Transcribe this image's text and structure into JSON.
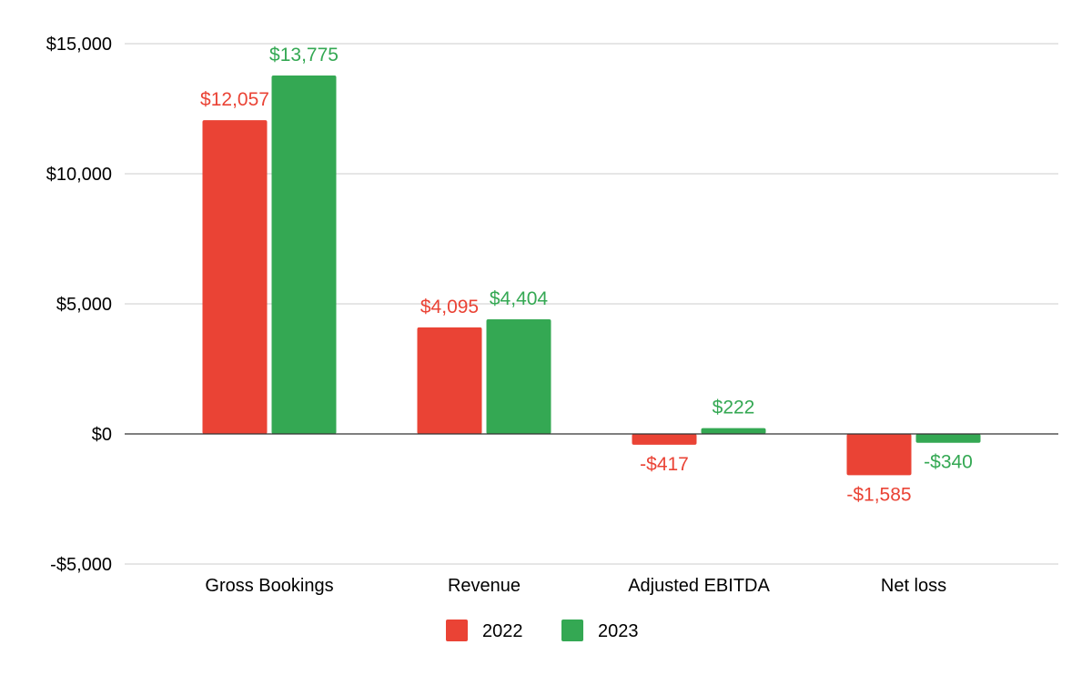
{
  "chart_data": {
    "type": "bar",
    "title": "",
    "xlabel": "",
    "ylabel": "",
    "categories": [
      "Gross Bookings",
      "Revenue",
      "Adjusted EBITDA",
      "Net loss"
    ],
    "series": [
      {
        "name": "2022",
        "color": "#ea4335",
        "values": [
          12057,
          4095,
          -417,
          -1585
        ],
        "labels": [
          "$12,057",
          "$4,095",
          "-$417",
          "-$1,585"
        ]
      },
      {
        "name": "2023",
        "color": "#34a853",
        "values": [
          13775,
          4404,
          222,
          -340
        ],
        "labels": [
          "$13,775",
          "$4,404",
          "$222",
          "-$340"
        ]
      }
    ],
    "ylim": [
      -5000,
      15000
    ],
    "yticks": [
      15000,
      10000,
      5000,
      0,
      -5000
    ],
    "ytick_labels": [
      "$15,000",
      "$10,000",
      "$5,000",
      "$0",
      "-$5,000"
    ],
    "grid": true,
    "legend_position": "bottom"
  }
}
